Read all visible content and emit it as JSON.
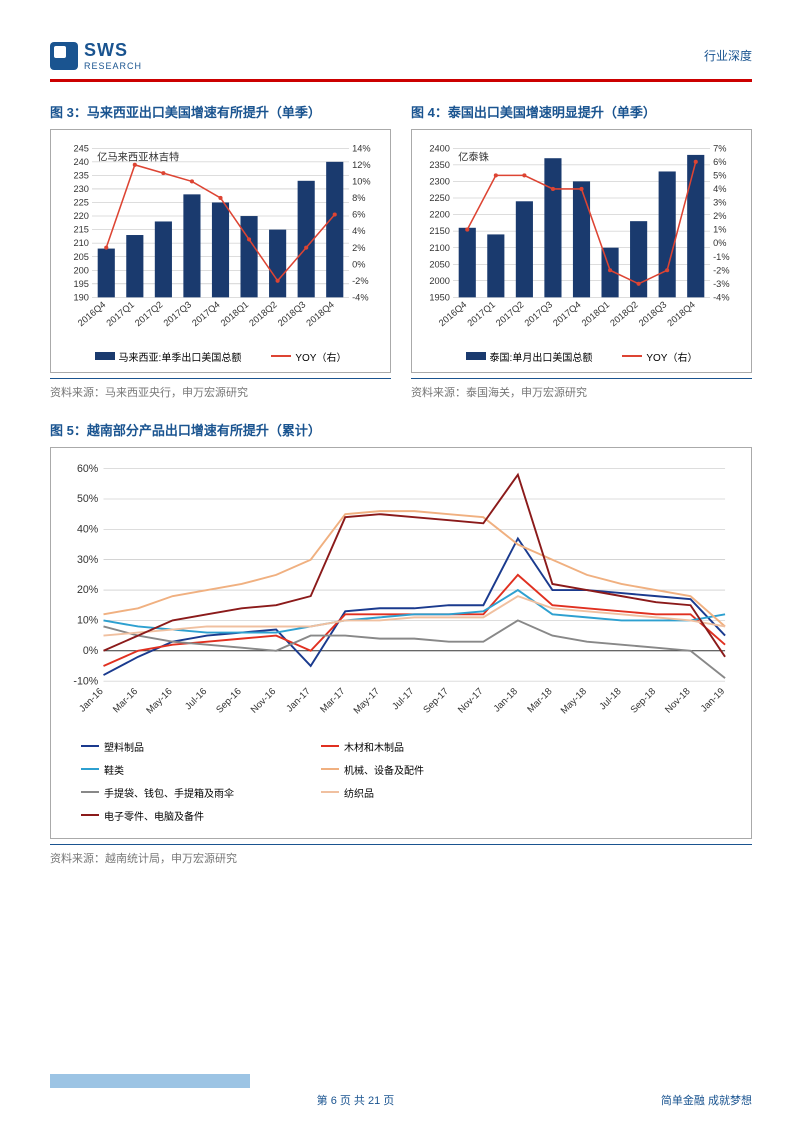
{
  "header": {
    "logo_main": "SWS",
    "logo_sub": "RESEARCH",
    "right_text": "行业深度"
  },
  "chart3": {
    "type": "bar-line",
    "title": "图 3：马来西亚出口美国增速有所提升（单季）",
    "unit_label": "亿马来西亚林吉特",
    "categories": [
      "2016Q4",
      "2017Q1",
      "2017Q2",
      "2017Q3",
      "2017Q4",
      "2018Q1",
      "2018Q2",
      "2018Q3",
      "2018Q4"
    ],
    "bar_values": [
      208,
      213,
      218,
      228,
      225,
      220,
      215,
      233,
      240
    ],
    "line_values": [
      2,
      12,
      11,
      10,
      8,
      3,
      -2,
      2,
      6
    ],
    "y1_min": 190,
    "y1_max": 245,
    "y1_step": 5,
    "y2_min": -4,
    "y2_max": 14,
    "y2_step": 2,
    "bar_color": "#1a3a6e",
    "line_color": "#dd4433",
    "grid_color": "#bbb",
    "text_color": "#333",
    "bar_legend": "马来西亚:单季出口美国总额",
    "line_legend": "YOY（右）",
    "source": "资料来源：马来西亚央行，申万宏源研究"
  },
  "chart4": {
    "type": "bar-line",
    "title": "图 4：泰国出口美国增速明显提升（单季）",
    "unit_label": "亿泰铢",
    "categories": [
      "2016Q4",
      "2017Q1",
      "2017Q2",
      "2017Q3",
      "2017Q4",
      "2018Q1",
      "2018Q2",
      "2018Q3",
      "2018Q4"
    ],
    "bar_values": [
      2160,
      2140,
      2240,
      2370,
      2300,
      2100,
      2180,
      2330,
      2380
    ],
    "line_values": [
      1,
      5,
      5,
      4,
      4,
      -2,
      -3,
      -2,
      6
    ],
    "y1_min": 1950,
    "y1_max": 2400,
    "y1_step": 50,
    "y2_min": -4,
    "y2_max": 7,
    "y2_step": 1,
    "bar_color": "#1a3a6e",
    "line_color": "#dd4433",
    "grid_color": "#bbb",
    "text_color": "#333",
    "bar_legend": "泰国:单月出口美国总额",
    "line_legend": "YOY（右）",
    "source": "资料来源：泰国海关，申万宏源研究"
  },
  "chart5": {
    "type": "line",
    "title": "图 5：越南部分产品出口增速有所提升（累计）",
    "categories": [
      "Jan-16",
      "Mar-16",
      "May-16",
      "Jul-16",
      "Sep-16",
      "Nov-16",
      "Jan-17",
      "Mar-17",
      "May-17",
      "Jul-17",
      "Sep-17",
      "Nov-17",
      "Jan-18",
      "Mar-18",
      "May-18",
      "Jul-18",
      "Sep-18",
      "Nov-18",
      "Jan-19"
    ],
    "y_min": -10,
    "y_max": 60,
    "y_step": 10,
    "grid_color": "#bbb",
    "series": [
      {
        "name": "塑料制品",
        "color": "#1a3a8e",
        "values": [
          -8,
          -2,
          3,
          5,
          6,
          7,
          -5,
          13,
          14,
          14,
          15,
          15,
          37,
          20,
          20,
          19,
          18,
          17,
          5
        ]
      },
      {
        "name": "木材和木制品",
        "color": "#e03020",
        "values": [
          -5,
          0,
          2,
          3,
          4,
          5,
          0,
          12,
          12,
          12,
          12,
          12,
          25,
          15,
          14,
          13,
          12,
          12,
          2
        ]
      },
      {
        "name": "鞋类",
        "color": "#2da0d0",
        "values": [
          10,
          8,
          7,
          6,
          6,
          6,
          8,
          10,
          11,
          12,
          12,
          13,
          20,
          12,
          11,
          10,
          10,
          10,
          12
        ]
      },
      {
        "name": "机械、设备及配件",
        "color": "#f0b080",
        "values": [
          12,
          14,
          18,
          20,
          22,
          25,
          30,
          45,
          46,
          46,
          45,
          44,
          35,
          30,
          25,
          22,
          20,
          18,
          8
        ]
      },
      {
        "name": "手提袋、钱包、手提箱及雨伞",
        "color": "#888888",
        "values": [
          8,
          5,
          3,
          2,
          1,
          0,
          5,
          5,
          4,
          4,
          3,
          3,
          10,
          5,
          3,
          2,
          1,
          0,
          -9
        ]
      },
      {
        "name": "纺织品",
        "color": "#f0c0a0",
        "values": [
          5,
          6,
          7,
          8,
          8,
          8,
          8,
          10,
          10,
          11,
          11,
          11,
          18,
          14,
          13,
          12,
          11,
          10,
          8
        ]
      },
      {
        "name": "电子零件、电脑及备件",
        "color": "#8b1a1a",
        "values": [
          0,
          5,
          10,
          12,
          14,
          15,
          18,
          44,
          45,
          44,
          43,
          42,
          58,
          22,
          20,
          18,
          16,
          15,
          -2
        ]
      }
    ],
    "source": "资料来源：越南统计局，申万宏源研究"
  },
  "footer": {
    "page": "第 6 页 共 21 页",
    "slogan": "简单金融 成就梦想"
  }
}
